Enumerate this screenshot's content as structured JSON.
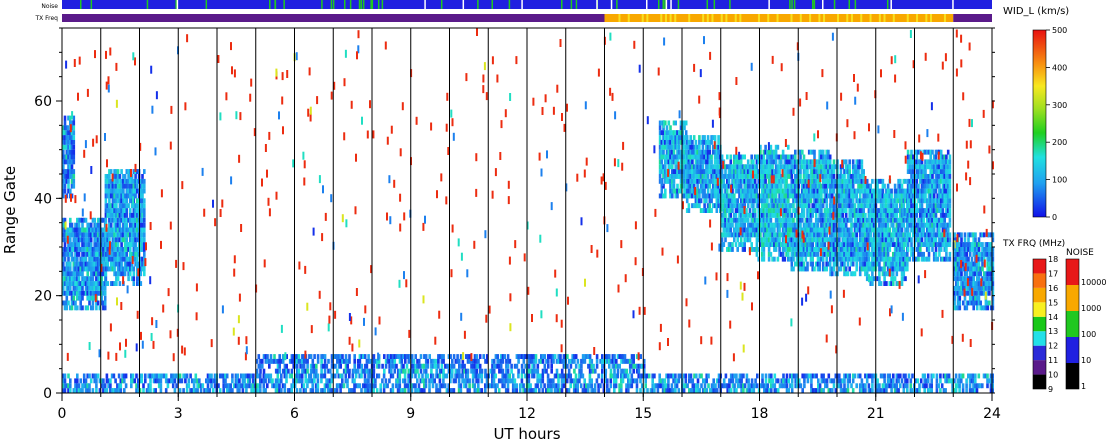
{
  "top_strips": {
    "noise_label": "Noise",
    "txfreq_label": "TX Freq"
  },
  "chart_data": {
    "type": "heatmap",
    "title": "",
    "xlabel": "UT hours",
    "ylabel": "Range Gate",
    "xlim": [
      0,
      24
    ],
    "ylim": [
      0,
      75
    ],
    "x_ticks": [
      "0",
      "3",
      "6",
      "9",
      "12",
      "15",
      "18",
      "21",
      "24"
    ],
    "x_tick_values": [
      0,
      3,
      6,
      9,
      12,
      15,
      18,
      21,
      24
    ],
    "y_ticks": [
      "0",
      "20",
      "40",
      "60"
    ],
    "y_tick_values": [
      0,
      20,
      40,
      60
    ],
    "hour_gridlines": true,
    "colorbars": {
      "width": {
        "label": "WID_L (km/s)",
        "min": 0,
        "max": 500,
        "ticks": [
          "0",
          "100",
          "200",
          "300",
          "400",
          "500"
        ],
        "tick_values": [
          0,
          100,
          200,
          300,
          400,
          500
        ]
      },
      "tx_freq": {
        "label": "TX FRQ (MHz)",
        "ticks": [
          "9",
          "10",
          "11",
          "12",
          "13",
          "14",
          "15",
          "16",
          "17",
          "18"
        ],
        "tick_values": [
          9,
          10,
          11,
          12,
          13,
          14,
          15,
          16,
          17,
          18
        ],
        "colors": [
          "#000000",
          "#5a1a8a",
          "#2a2ad8",
          "#22e0e8",
          "#18c818",
          "#f8f020",
          "#f8a800",
          "#f87010",
          "#e81818"
        ]
      },
      "noise": {
        "label": "NOISE",
        "ticks": [
          "1",
          "10",
          "100",
          "1000",
          "10000"
        ],
        "tick_values": [
          1,
          10,
          100,
          1000,
          10000
        ],
        "colors": [
          "#000000",
          "#2020e0",
          "#20c820",
          "#f8a800",
          "#e81818"
        ]
      }
    },
    "features": [
      {
        "kind": "echo",
        "t_start": 0.0,
        "t_end": 1.1,
        "gate_bottom": 17,
        "gate_top": 36,
        "value": 80
      },
      {
        "kind": "echo",
        "t_start": 1.1,
        "t_end": 2.1,
        "gate_bottom": 22,
        "gate_top": 46,
        "value": 90
      },
      {
        "kind": "echo",
        "t_start": 0.0,
        "t_end": 0.3,
        "gate_bottom": 40,
        "gate_top": 57,
        "value": 60
      },
      {
        "kind": "echo",
        "t_start": 15.4,
        "t_end": 16.1,
        "gate_bottom": 40,
        "gate_top": 56,
        "value": 110
      },
      {
        "kind": "echo",
        "t_start": 16.1,
        "t_end": 17.0,
        "gate_bottom": 37,
        "gate_top": 53,
        "value": 100
      },
      {
        "kind": "echo",
        "t_start": 17.0,
        "t_end": 17.9,
        "gate_bottom": 29,
        "gate_top": 49,
        "value": 110
      },
      {
        "kind": "echo",
        "t_start": 17.9,
        "t_end": 18.8,
        "gate_bottom": 27,
        "gate_top": 51,
        "value": 120
      },
      {
        "kind": "echo",
        "t_start": 18.8,
        "t_end": 19.8,
        "gate_bottom": 25,
        "gate_top": 50,
        "value": 110
      },
      {
        "kind": "echo",
        "t_start": 19.8,
        "t_end": 20.7,
        "gate_bottom": 24,
        "gate_top": 48,
        "value": 100
      },
      {
        "kind": "echo",
        "t_start": 20.7,
        "t_end": 21.8,
        "gate_bottom": 22,
        "gate_top": 44,
        "value": 110
      },
      {
        "kind": "echo",
        "t_start": 21.8,
        "t_end": 22.9,
        "gate_bottom": 27,
        "gate_top": 50,
        "value": 100
      },
      {
        "kind": "echo",
        "t_start": 23.0,
        "t_end": 24.0,
        "gate_bottom": 17,
        "gate_top": 33,
        "value": 80
      },
      {
        "kind": "echo",
        "t_start": 0.0,
        "t_end": 24.0,
        "gate_bottom": 0,
        "gate_top": 4,
        "value": 70
      },
      {
        "kind": "echo",
        "t_start": 5.0,
        "t_end": 15.0,
        "gate_bottom": 4,
        "gate_top": 8,
        "value": 60
      }
    ],
    "tx_freq_strip": [
      {
        "t_start": 0.0,
        "t_end": 14.0,
        "mhz": 10
      },
      {
        "t_start": 14.0,
        "t_end": 23.0,
        "mhz": 15
      },
      {
        "t_start": 23.0,
        "t_end": 24.0,
        "mhz": 10
      }
    ],
    "noise_strip": [
      {
        "t_start": 0.0,
        "t_end": 24.0,
        "level": 10
      }
    ]
  }
}
